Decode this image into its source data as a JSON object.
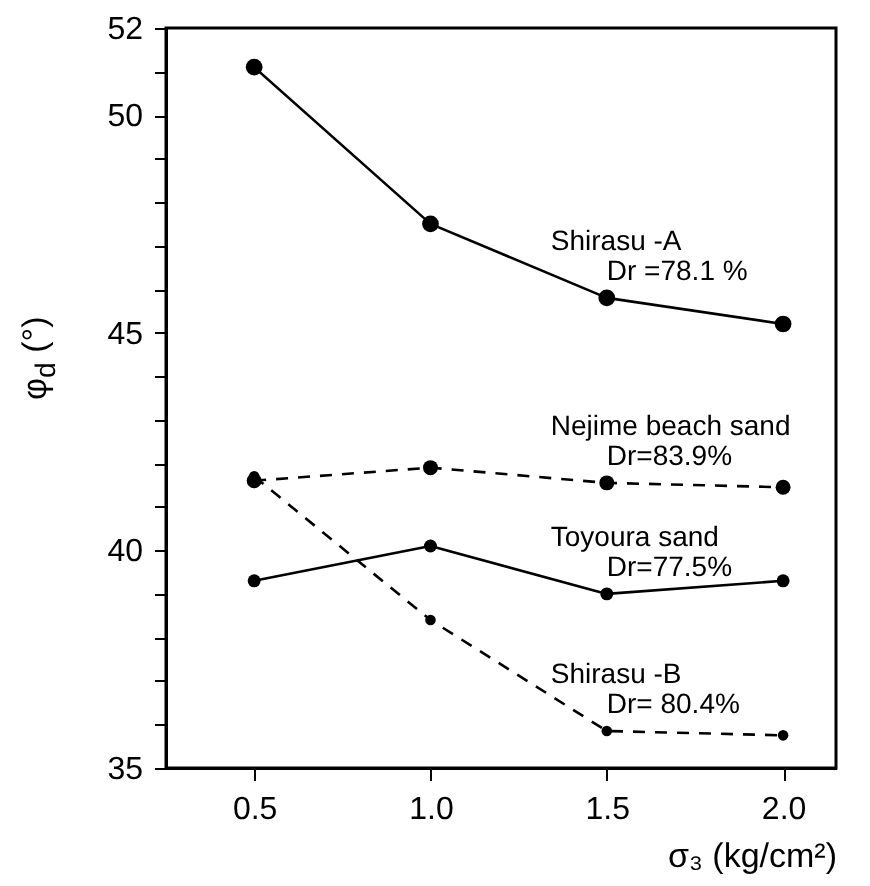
{
  "chart_data": {
    "type": "line",
    "xlabel": "σ₃  (kg/cm²)",
    "ylabel": "φ$_{d}$ (°)",
    "x": [
      0.5,
      1.0,
      1.5,
      2.0
    ],
    "series": [
      {
        "name": "Shirasu -A",
        "color": "#000000",
        "values": [
          51.1,
          47.5,
          45.8,
          45.2
        ],
        "line_style": "solid"
      },
      {
        "name": "Nejime beach sand",
        "color": "#000000",
        "values": [
          41.6,
          41.9,
          41.55,
          41.45
        ],
        "line_style": "dashed"
      },
      {
        "name": "Toyoura sand",
        "color": "#000000",
        "values": [
          39.3,
          40.1,
          39.0,
          39.3
        ],
        "line_style": "solid"
      },
      {
        "name": "Shirasu -B",
        "color": "#000000",
        "values": [
          41.7,
          38.4,
          35.85,
          35.75
        ],
        "line_style": "dashed"
      }
    ],
    "annotations": [
      "Dr =78.1 %",
      "Dr=83.9%",
      "Dr=77.5%",
      "Dr= 80.4%"
    ],
    "xlim": [
      0.25,
      2.15
    ],
    "xticks": [
      {
        "value": 0.5,
        "label": "0.5"
      },
      {
        "value": 1.0,
        "label": "1.0"
      },
      {
        "value": 1.5,
        "label": "1.5"
      },
      {
        "value": 2.0,
        "label": "2.0"
      }
    ],
    "ylim": [
      35,
      52
    ],
    "yticks": [
      35,
      {
        "value": 36,
        "label": null
      },
      {
        "value": 37,
        "label": null
      },
      {
        "value": 38,
        "label": null
      },
      {
        "value": 39,
        "label": null
      },
      40,
      {
        "value": 41,
        "label": null
      },
      {
        "value": 42,
        "label": null
      },
      {
        "value": 43,
        "label": null
      },
      {
        "value": 44,
        "label": null
      },
      45,
      {
        "value": 46,
        "label": null
      },
      {
        "value": 47,
        "label": null
      },
      {
        "value": 48,
        "label": null
      },
      {
        "value": 49,
        "label": null
      },
      50,
      {
        "value": 51,
        "label": null
      },
      52
    ],
    "marker": "circle",
    "grid": false
  }
}
